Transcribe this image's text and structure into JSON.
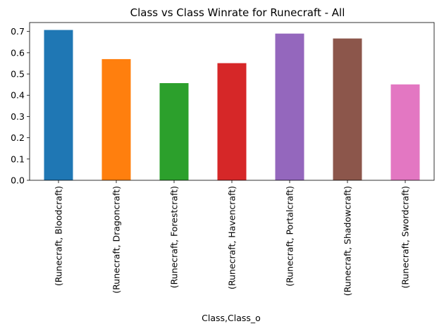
{
  "chart_data": {
    "type": "bar",
    "title": "Class vs Class Winrate for Runecraft - All",
    "xlabel": "Class,Class_o",
    "ylabel": "",
    "categories": [
      "(Runecraft, Bloodcraft)",
      "(Runecraft, Dragoncraft)",
      "(Runecraft, Forestcraft)",
      "(Runecraft, Havencraft)",
      "(Runecraft, Portalcraft)",
      "(Runecraft, Shadowcraft)",
      "(Runecraft, Swordcraft)"
    ],
    "values": [
      0.707,
      0.57,
      0.457,
      0.551,
      0.69,
      0.667,
      0.451
    ],
    "colors": [
      "#1f77b4",
      "#ff7f0e",
      "#2ca02c",
      "#d62728",
      "#9467bd",
      "#8c564b",
      "#e377c2"
    ],
    "ylim": [
      0,
      0.742
    ],
    "yticks": [
      "0.0",
      "0.1",
      "0.2",
      "0.3",
      "0.4",
      "0.5",
      "0.6",
      "0.7"
    ],
    "grid": false,
    "legend": "none"
  }
}
